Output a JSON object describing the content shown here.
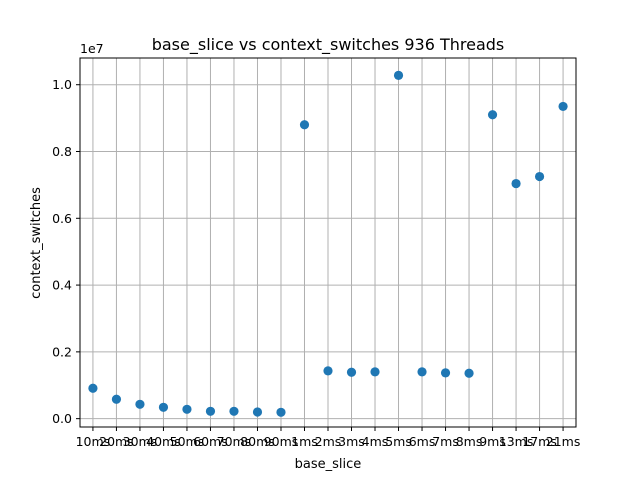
{
  "chart_data": {
    "type": "scatter",
    "title": "base_slice vs context_switches 936 Threads",
    "xlabel": "base_slice",
    "ylabel": "context_switches",
    "y_scale_label": "1e7",
    "grid": true,
    "categories": [
      "10ms",
      "20ms",
      "30ms",
      "40ms",
      "50ms",
      "60ms",
      "70ms",
      "80ms",
      "90ms",
      "1ms",
      "2ms",
      "3ms",
      "4ms",
      "5ms",
      "6ms",
      "7ms",
      "8ms",
      "9ms",
      "13ms",
      "17ms",
      "21ms"
    ],
    "values": [
      910000,
      580000,
      430000,
      340000,
      280000,
      220000,
      220000,
      200000,
      190000,
      8800000,
      1430000,
      1390000,
      1400000,
      10280000,
      1400000,
      1370000,
      1360000,
      9100000,
      7040000,
      7250000,
      9350000
    ],
    "ylim": [
      -250000,
      10800000
    ],
    "y_ticks": [
      0,
      2000000,
      4000000,
      6000000,
      8000000,
      10000000
    ],
    "y_tick_labels": [
      "0.0",
      "0.2",
      "0.4",
      "0.6",
      "0.8",
      "1.0"
    ],
    "point_color": "#1f77b4",
    "grid_color": "#b0b0b0"
  }
}
